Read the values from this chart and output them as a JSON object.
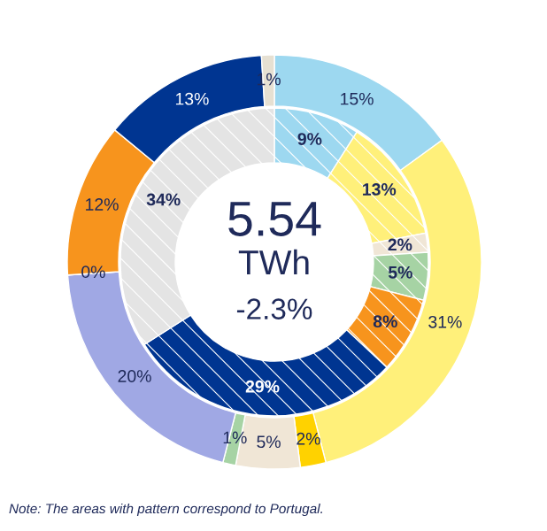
{
  "chart_data": {
    "type": "donut",
    "series": [
      {
        "values": [
          15,
          31,
          2,
          5,
          1,
          20,
          0,
          12,
          13,
          1
        ],
        "colors": [
          "#9dd8f0",
          "#fff07a",
          "#ffd200",
          "#f0e6d6",
          "#a6d3a4",
          "#a0a8e4",
          "#f7941d",
          "#f7941d",
          "#003591",
          "#e6e0d2"
        ],
        "value_labels": [
          "15%",
          "31%",
          "2%",
          "5%",
          "1%",
          "20%",
          "0%",
          "12%",
          "13%",
          "1%"
        ]
      },
      {
        "values": [
          9,
          13,
          2,
          5,
          8,
          29,
          34
        ],
        "colors": [
          "#9dd8f0",
          "#fff07a",
          "#f0e6d6",
          "#a6d3a4",
          "#f7941d",
          "#003591",
          "#e4e4e4"
        ],
        "value_labels": [
          "9%",
          "13%",
          "2%",
          "5%",
          "8%",
          "29%",
          "34%"
        ]
      }
    ],
    "annotations": [
      "5.54",
      "TWh",
      "-2.3%",
      "Note: The areas with pattern correspond to Portugal."
    ]
  }
}
